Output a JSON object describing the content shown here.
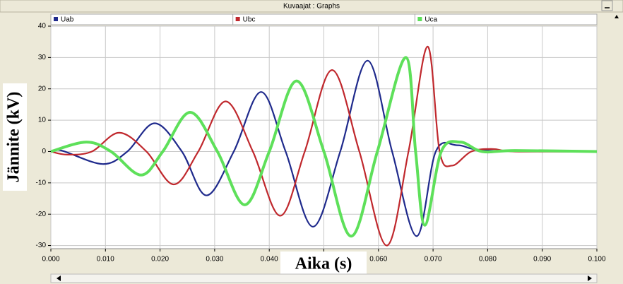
{
  "chart_data": {
    "type": "line",
    "title": "Kuvaajat : Graphs",
    "xlabel": "Aika (s)",
    "ylabel": "Jännite (kV)",
    "xlim": [
      0,
      0.1
    ],
    "ylim": [
      -31,
      40
    ],
    "xticks": [
      {
        "value": 0,
        "label": "0.000"
      },
      {
        "value": 0.01,
        "label": "0.010"
      },
      {
        "value": 0.02,
        "label": "0.020"
      },
      {
        "value": 0.03,
        "label": "0.030"
      },
      {
        "value": 0.04,
        "label": "0.040"
      },
      {
        "value": 0.05,
        "label": "0.050"
      },
      {
        "value": 0.06,
        "label": "0.060"
      },
      {
        "value": 0.07,
        "label": "0.070"
      },
      {
        "value": 0.08,
        "label": "0.080"
      },
      {
        "value": 0.09,
        "label": "0.090"
      },
      {
        "value": 0.1,
        "label": "0.100"
      }
    ],
    "yticks": [
      -30,
      -20,
      -10,
      0,
      10,
      20,
      30,
      40
    ],
    "grid": true,
    "series": [
      {
        "name": "Uab",
        "color": "#1f2a8c",
        "width": 2.2,
        "x": [
          0,
          0.002,
          0.0095,
          0.014,
          0.019,
          0.024,
          0.0285,
          0.0335,
          0.0385,
          0.043,
          0.048,
          0.053,
          0.058,
          0.0625,
          0.067,
          0.0705,
          0.0745,
          0.08,
          0.1
        ],
        "values": [
          0,
          0.3,
          -4,
          0,
          9,
          0,
          -14,
          0,
          19,
          0,
          -24,
          0,
          29,
          0,
          -27,
          0,
          2,
          0.3,
          0
        ]
      },
      {
        "name": "Ubc",
        "color": "#c0282d",
        "width": 2.2,
        "x": [
          0,
          0.003,
          0.0075,
          0.0125,
          0.0175,
          0.0225,
          0.027,
          0.032,
          0.037,
          0.042,
          0.0465,
          0.0515,
          0.0565,
          0.0615,
          0.0655,
          0.069,
          0.0712,
          0.0735,
          0.077,
          0.081,
          0.085,
          0.1
        ],
        "values": [
          0,
          -1,
          0,
          6,
          0,
          -10.5,
          0,
          16,
          0,
          -20.5,
          0,
          26,
          0,
          -30,
          0,
          33.5,
          0,
          -4.5,
          0,
          0.8,
          0,
          0
        ]
      },
      {
        "name": "Uca",
        "color": "#5ee05a",
        "width": 4,
        "x": [
          0,
          0.0065,
          0.011,
          0.0165,
          0.0205,
          0.0255,
          0.0305,
          0.0355,
          0.04,
          0.045,
          0.05,
          0.055,
          0.0598,
          0.065,
          0.0668,
          0.0685,
          0.0715,
          0.075,
          0.079,
          0.085,
          0.1
        ],
        "values": [
          0,
          3,
          0,
          -7.5,
          0,
          12.5,
          0,
          -17,
          0,
          22.5,
          0,
          -27,
          0,
          30,
          0,
          -23.5,
          0,
          3,
          0,
          0.3,
          0
        ]
      }
    ]
  }
}
